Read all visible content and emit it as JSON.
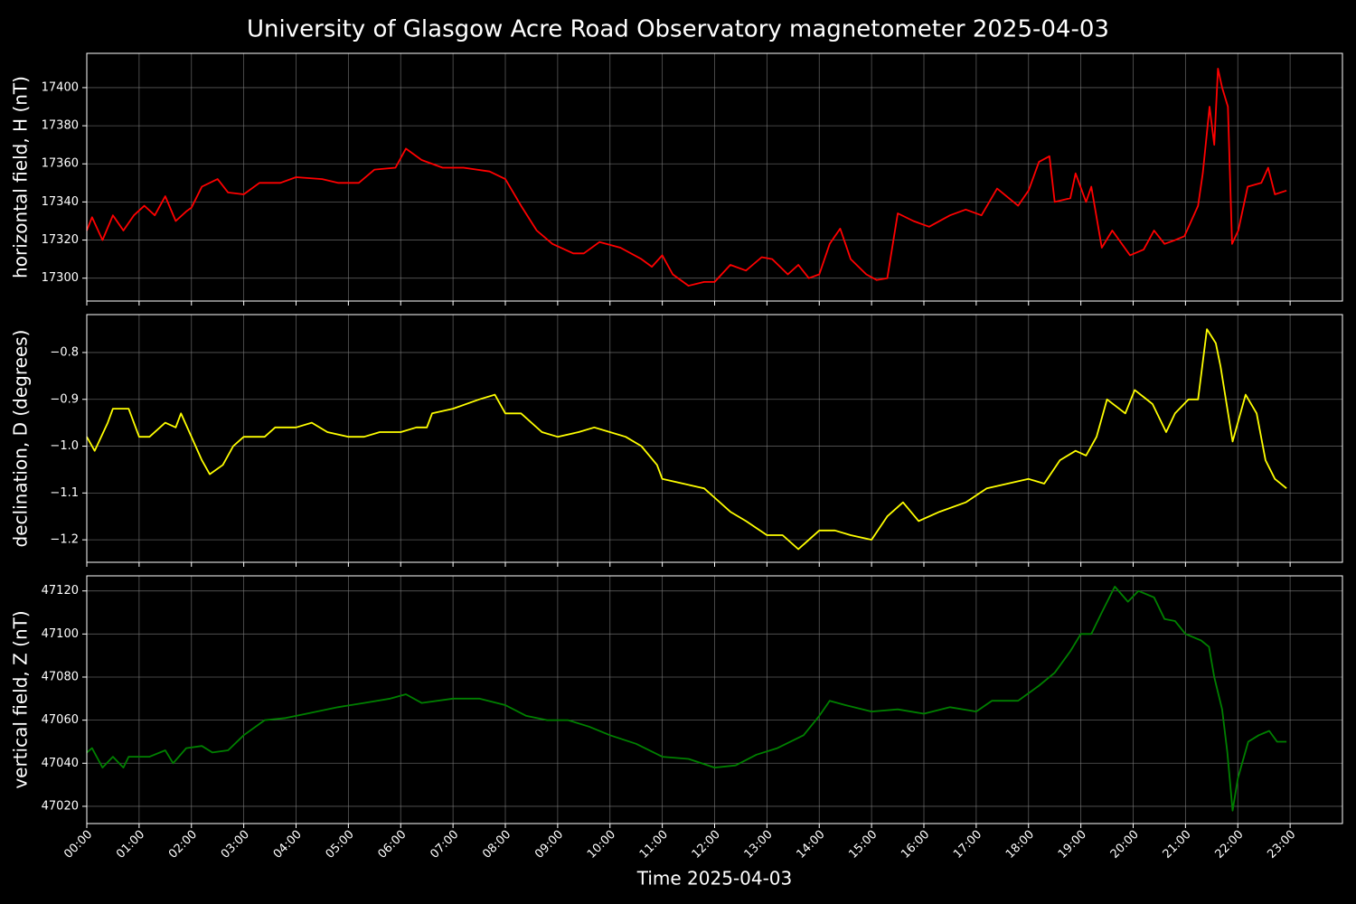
{
  "title": "University of Glasgow Acre Road Observatory magnetometer 2025-04-03",
  "chart_data": [
    {
      "type": "line",
      "ylabel": "horizontal field, H (nT)",
      "color": "#ff0000",
      "grid": true,
      "xlim": [
        0,
        24
      ],
      "ylim": [
        17288,
        17418
      ],
      "yticks": [
        17300,
        17320,
        17340,
        17360,
        17380,
        17400
      ],
      "x": [
        0,
        0.1,
        0.3,
        0.5,
        0.7,
        0.9,
        1.1,
        1.3,
        1.5,
        1.7,
        1.9,
        2.0,
        2.2,
        2.5,
        2.7,
        3.0,
        3.3,
        3.7,
        4.0,
        4.5,
        4.8,
        5.2,
        5.5,
        5.9,
        6.1,
        6.4,
        6.8,
        7.2,
        7.7,
        8.0,
        8.3,
        8.6,
        8.9,
        9.3,
        9.5,
        9.8,
        10.2,
        10.6,
        10.8,
        11.0,
        11.2,
        11.5,
        11.8,
        12.0,
        12.3,
        12.6,
        12.9,
        13.1,
        13.4,
        13.6,
        13.8,
        14.0,
        14.2,
        14.4,
        14.6,
        14.9,
        15.1,
        15.3,
        15.5,
        15.8,
        16.1,
        16.5,
        16.8,
        17.1,
        17.4,
        17.8,
        18.0,
        18.2,
        18.4,
        18.5,
        18.8,
        18.9,
        19.1,
        19.2,
        19.4,
        19.6,
        19.94,
        20.2,
        20.4,
        20.6,
        20.8,
        20.98,
        21.24,
        21.33,
        21.46,
        21.55,
        21.62,
        21.7,
        21.81,
        21.89,
        22.01,
        22.19,
        22.45,
        22.58,
        22.71,
        22.93
      ],
      "values": [
        17325,
        17332,
        17320,
        17333,
        17325,
        17333,
        17338,
        17333,
        17343,
        17330,
        17335,
        17337,
        17348,
        17352,
        17345,
        17344,
        17350,
        17350,
        17353,
        17352,
        17350,
        17350,
        17357,
        17358,
        17368,
        17362,
        17358,
        17358,
        17356,
        17352,
        17338,
        17325,
        17318,
        17313,
        17313,
        17319,
        17316,
        17310,
        17306,
        17312,
        17302,
        17296,
        17298,
        17298,
        17307,
        17304,
        17311,
        17310,
        17302,
        17307,
        17300,
        17302,
        17318,
        17326,
        17310,
        17302,
        17299,
        17300,
        17334,
        17330,
        17327,
        17333,
        17336,
        17333,
        17347,
        17338,
        17346,
        17361,
        17364,
        17340,
        17342,
        17355,
        17340,
        17348,
        17316,
        17325,
        17312,
        17315,
        17325,
        17318,
        17320,
        17322,
        17338,
        17355,
        17390,
        17370,
        17410,
        17400,
        17390,
        17318,
        17325,
        17348,
        17350,
        17358,
        17344,
        17346
      ]
    },
    {
      "type": "line",
      "ylabel": "declination, D (degrees)",
      "color": "#ffff00",
      "grid": true,
      "xlim": [
        0,
        24
      ],
      "ylim": [
        -1.248,
        -0.719
      ],
      "yticks": [
        {
          "value": -1.2,
          "label": "−1.2"
        },
        {
          "value": -1.1,
          "label": "−1.1"
        },
        {
          "value": -1.0,
          "label": "−1.0"
        },
        {
          "value": -0.9,
          "label": "−0.9"
        },
        {
          "value": -0.8,
          "label": "−0.8"
        }
      ],
      "x": [
        0,
        0.15,
        0.4,
        0.5,
        0.8,
        1.0,
        1.2,
        1.5,
        1.7,
        1.8,
        2.0,
        2.2,
        2.35,
        2.6,
        2.8,
        3.0,
        3.4,
        3.6,
        4.0,
        4.3,
        4.6,
        5.0,
        5.3,
        5.6,
        6.0,
        6.3,
        6.5,
        6.6,
        7.0,
        7.5,
        7.8,
        8.0,
        8.3,
        8.7,
        9.0,
        9.4,
        9.7,
        10.0,
        10.3,
        10.6,
        10.9,
        11.0,
        11.4,
        11.8,
        12.0,
        12.3,
        12.6,
        13.0,
        13.3,
        13.6,
        14.0,
        14.3,
        14.6,
        15.0,
        15.3,
        15.6,
        15.9,
        16.3,
        16.8,
        17.2,
        17.6,
        18.0,
        18.3,
        18.6,
        18.9,
        19.1,
        19.3,
        19.5,
        19.85,
        20.03,
        20.37,
        20.63,
        20.8,
        21.06,
        21.24,
        21.41,
        21.58,
        21.67,
        21.9,
        22.15,
        22.36,
        22.53,
        22.71,
        22.93
      ],
      "values": [
        -0.98,
        -1.01,
        -0.95,
        -0.92,
        -0.92,
        -0.98,
        -0.98,
        -0.95,
        -0.96,
        -0.93,
        -0.98,
        -1.03,
        -1.06,
        -1.04,
        -1.0,
        -0.98,
        -0.98,
        -0.96,
        -0.96,
        -0.95,
        -0.97,
        -0.98,
        -0.98,
        -0.97,
        -0.97,
        -0.96,
        -0.96,
        -0.93,
        -0.92,
        -0.9,
        -0.89,
        -0.93,
        -0.93,
        -0.97,
        -0.98,
        -0.97,
        -0.96,
        -0.97,
        -0.98,
        -1.0,
        -1.04,
        -1.07,
        -1.08,
        -1.09,
        -1.11,
        -1.14,
        -1.16,
        -1.19,
        -1.19,
        -1.22,
        -1.18,
        -1.18,
        -1.19,
        -1.2,
        -1.15,
        -1.12,
        -1.16,
        -1.14,
        -1.12,
        -1.09,
        -1.08,
        -1.07,
        -1.08,
        -1.03,
        -1.01,
        -1.02,
        -0.98,
        -0.9,
        -0.93,
        -0.88,
        -0.91,
        -0.97,
        -0.93,
        -0.9,
        -0.9,
        -0.75,
        -0.78,
        -0.83,
        -0.99,
        -0.89,
        -0.93,
        -1.03,
        -1.07,
        -1.09
      ]
    },
    {
      "type": "line",
      "ylabel": "vertical field, Z (nT)",
      "xlabel": "Time 2025-04-03",
      "color": "#008000",
      "grid": true,
      "xlim": [
        0,
        24
      ],
      "ylim": [
        47012,
        47127
      ],
      "yticks": [
        47020,
        47040,
        47060,
        47080,
        47100,
        47120
      ],
      "xticks": [
        {
          "value": 0,
          "label": "00:00"
        },
        {
          "value": 1,
          "label": "01:00"
        },
        {
          "value": 2,
          "label": "02:00"
        },
        {
          "value": 3,
          "label": "03:00"
        },
        {
          "value": 4,
          "label": "04:00"
        },
        {
          "value": 5,
          "label": "05:00"
        },
        {
          "value": 6,
          "label": "06:00"
        },
        {
          "value": 7,
          "label": "07:00"
        },
        {
          "value": 8,
          "label": "08:00"
        },
        {
          "value": 9,
          "label": "09:00"
        },
        {
          "value": 10,
          "label": "10:00"
        },
        {
          "value": 11,
          "label": "11:00"
        },
        {
          "value": 12,
          "label": "12:00"
        },
        {
          "value": 13,
          "label": "13:00"
        },
        {
          "value": 14,
          "label": "14:00"
        },
        {
          "value": 15,
          "label": "15:00"
        },
        {
          "value": 16,
          "label": "16:00"
        },
        {
          "value": 17,
          "label": "17:00"
        },
        {
          "value": 18,
          "label": "18:00"
        },
        {
          "value": 19,
          "label": "19:00"
        },
        {
          "value": 20,
          "label": "20:00"
        },
        {
          "value": 21,
          "label": "21:00"
        },
        {
          "value": 22,
          "label": "22:00"
        },
        {
          "value": 23,
          "label": "23:00"
        }
      ],
      "x": [
        0,
        0.1,
        0.3,
        0.5,
        0.7,
        0.8,
        1.2,
        1.5,
        1.65,
        1.9,
        2.2,
        2.4,
        2.7,
        3.0,
        3.4,
        3.8,
        4.2,
        4.8,
        5.3,
        5.8,
        6.1,
        6.4,
        7.0,
        7.5,
        8.0,
        8.4,
        8.8,
        9.2,
        9.6,
        10.0,
        10.5,
        11.0,
        11.5,
        12.0,
        12.4,
        12.8,
        13.2,
        13.7,
        14.0,
        14.2,
        14.5,
        15.0,
        15.5,
        16.0,
        16.5,
        17.0,
        17.3,
        17.8,
        18.2,
        18.5,
        18.8,
        19.0,
        19.2,
        19.4,
        19.65,
        19.9,
        20.1,
        20.4,
        20.6,
        20.8,
        21.0,
        21.3,
        21.45,
        21.55,
        21.7,
        21.8,
        21.9,
        22.0,
        22.2,
        22.4,
        22.6,
        22.75,
        22.93
      ],
      "values": [
        47045,
        47047,
        47038,
        47043,
        47038,
        47043,
        47043,
        47046,
        47040,
        47047,
        47048,
        47045,
        47046,
        47053,
        47060,
        47061,
        47063,
        47066,
        47068,
        47070,
        47072,
        47068,
        47070,
        47070,
        47067,
        47062,
        47060,
        47060,
        47057,
        47053,
        47049,
        47043,
        47042,
        47038,
        47039,
        47044,
        47047,
        47053,
        47062,
        47069,
        47067,
        47064,
        47065,
        47063,
        47066,
        47064,
        47069,
        47069,
        47076,
        47082,
        47092,
        47100,
        47100,
        47110,
        47122,
        47115,
        47120,
        47117,
        47107,
        47106,
        47100,
        47097,
        47094,
        47080,
        47065,
        47045,
        47018,
        47033,
        47050,
        47053,
        47055,
        47050,
        47050
      ]
    }
  ]
}
